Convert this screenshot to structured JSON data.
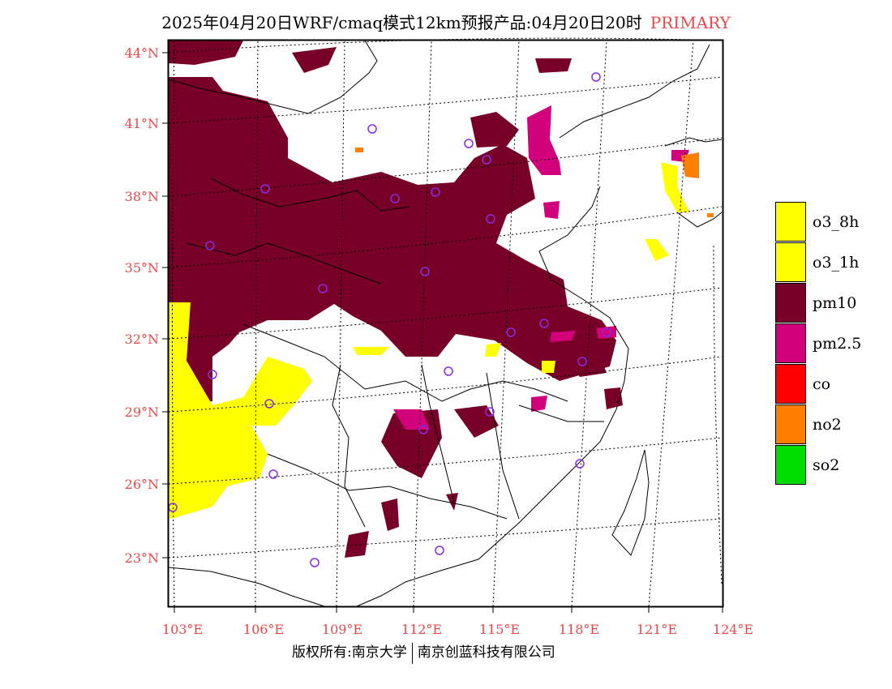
{
  "title": {
    "text": "2025年04月20日WRF/cmaq模式12km预报产品:04月20日20时",
    "tag": "PRIMARY"
  },
  "axes": {
    "lat_labels": [
      "44°N",
      "41°N",
      "38°N",
      "35°N",
      "32°N",
      "29°N",
      "26°N",
      "23°N"
    ],
    "lon_labels": [
      "103°E",
      "106°E",
      "109°E",
      "112°E",
      "115°E",
      "118°E",
      "121°E",
      "124°E"
    ]
  },
  "legend": [
    {
      "label": "o3_8h",
      "color": "#ffff00"
    },
    {
      "label": "o3_1h",
      "color": "#ffff00"
    },
    {
      "label": "pm10",
      "color": "#780028"
    },
    {
      "label": "pm2.5",
      "color": "#d2007a"
    },
    {
      "label": "co",
      "color": "#ff0000"
    },
    {
      "label": "no2",
      "color": "#ff7f00"
    },
    {
      "label": "so2",
      "color": "#00dc00"
    }
  ],
  "colors": {
    "pm10": "#780028",
    "pm25": "#d2007a",
    "o3": "#ffff00",
    "no2": "#ff7f00",
    "station": "#8a2be2",
    "tick": "#e8484a"
  },
  "footer": {
    "left": "版权所有:南京大学",
    "right": "南京创蓝科技有限公司"
  }
}
